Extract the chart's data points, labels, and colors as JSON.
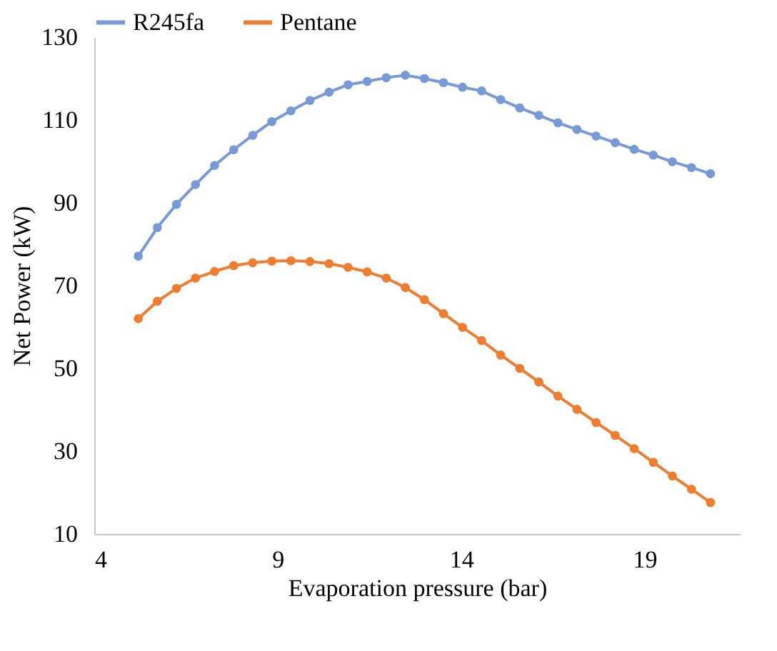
{
  "chart_data": {
    "type": "line",
    "xlabel": "Evaporation pressure (bar)",
    "ylabel": "Net Power (kW)",
    "x": [
      5.2,
      5.72,
      6.24,
      6.76,
      7.28,
      7.8,
      8.32,
      8.84,
      9.36,
      9.88,
      10.4,
      10.92,
      11.44,
      11.96,
      12.48,
      13,
      13.52,
      14.04,
      14.56,
      15.08,
      15.6,
      16.12,
      16.64,
      17.16,
      17.68,
      18.2,
      18.72,
      19.24,
      19.76,
      20.28,
      20.8
    ],
    "series": [
      {
        "name": "R245fa",
        "color": "#779ad6",
        "values": [
          77.1,
          84.0,
          89.6,
          94.4,
          99.0,
          102.8,
          106.3,
          109.6,
          112.2,
          114.7,
          116.7,
          118.5,
          119.3,
          120.2,
          120.8,
          120.0,
          119.0,
          117.9,
          117.0,
          114.9,
          112.9,
          111.1,
          109.3,
          107.7,
          106.1,
          104.5,
          102.9,
          101.5,
          99.9,
          98.5,
          97.0
        ]
      },
      {
        "name": "Pentane",
        "color": "#ed7d31",
        "values": [
          62.0,
          66.2,
          69.3,
          71.8,
          73.4,
          74.8,
          75.5,
          75.9,
          76.0,
          75.8,
          75.3,
          74.4,
          73.3,
          71.8,
          69.5,
          66.6,
          63.2,
          59.9,
          56.7,
          53.2,
          50.0,
          46.7,
          43.3,
          40.1,
          36.9,
          33.8,
          30.6,
          27.3,
          24.0,
          20.8,
          17.6
        ]
      }
    ],
    "xlim": [
      4,
      21.6
    ],
    "xticks": [
      4,
      9,
      14,
      19
    ],
    "ylim": [
      10,
      130
    ],
    "yticks": [
      10,
      30,
      50,
      70,
      90,
      110,
      130
    ],
    "grid": false,
    "legend": "top",
    "marker": "circle",
    "line_style": "solid"
  }
}
